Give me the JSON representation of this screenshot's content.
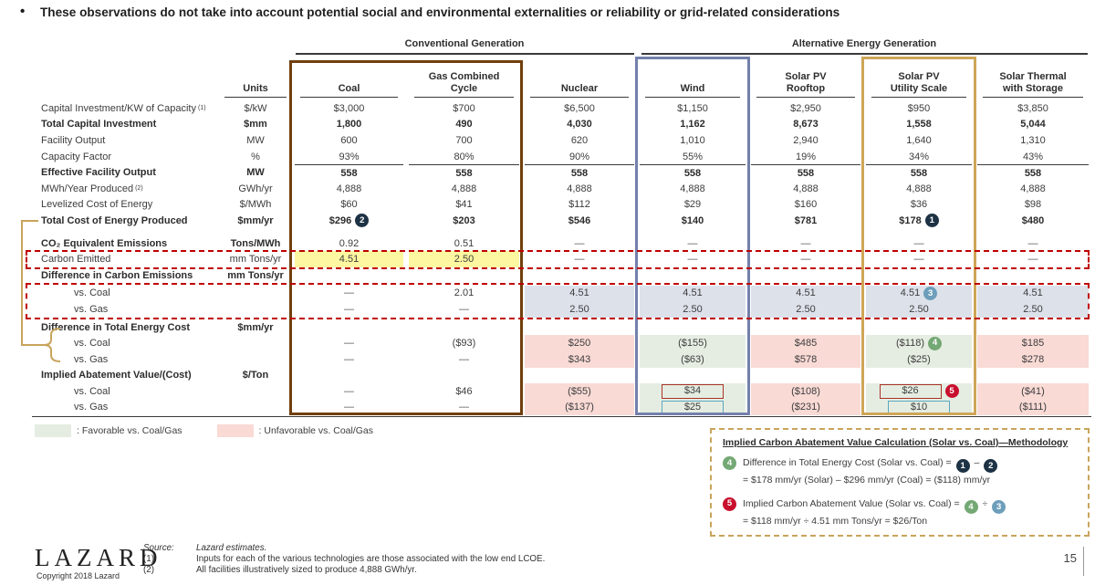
{
  "headline": "These observations do not take into account potential social and environmental externalities or reliability or grid-related considerations",
  "colors": {
    "brown_box": "#713f0d",
    "wind_box": "#7380ac",
    "solar_box": "#cfa557",
    "yellow": "#fcf7a0",
    "blue_cell": "#dce1ea",
    "pink_cell": "#f9dad5",
    "green_cell": "#e5ede2",
    "red_dash": "#c00000",
    "navy_badge": "#1d3244",
    "steel_badge": "#6d9eba",
    "green_badge": "#74a874",
    "red_badge": "#c8102e",
    "tan": "#c8a45c"
  },
  "groups": {
    "conventional": "Conventional Generation",
    "alternative": "Alternative Energy Generation"
  },
  "table": {
    "units_header": "Units",
    "columns": [
      "Coal",
      "Gas Combined\nCycle",
      "Nuclear",
      "Wind",
      "Solar PV\nRooftop",
      "Solar PV\nUtility Scale",
      "Solar Thermal\nwith Storage"
    ],
    "rows": [
      {
        "label": "Capital Investment/KW of Capacity",
        "sup": "(1)",
        "unit": "$/kW",
        "values": [
          "$3,000",
          "$700",
          "$6,500",
          "$1,150",
          "$2,950",
          "$950",
          "$3,850"
        ]
      },
      {
        "label": "Total Capital Investment",
        "bold": true,
        "vbold": true,
        "unit": "$mm",
        "values": [
          "1,800",
          "490",
          "4,030",
          "1,162",
          "8,673",
          "1,558",
          "5,044"
        ]
      },
      {
        "label": "Facility Output",
        "unit": "MW",
        "values": [
          "600",
          "700",
          "620",
          "1,010",
          "2,940",
          "1,640",
          "1,310"
        ]
      },
      {
        "label": "Capacity Factor",
        "unit": "%",
        "values": [
          "93%",
          "80%",
          "90%",
          "55%",
          "19%",
          "34%",
          "43%"
        ]
      },
      {
        "label": "Effective Facility Output",
        "bold": true,
        "vbold": true,
        "topline": true,
        "unit": "MW",
        "values": [
          "558",
          "558",
          "558",
          "558",
          "558",
          "558",
          "558"
        ]
      },
      {
        "label": "MWh/Year Produced",
        "sup": "(2)",
        "unit": "GWh/yr",
        "values": [
          "4,888",
          "4,888",
          "4,888",
          "4,888",
          "4,888",
          "4,888",
          "4,888"
        ]
      },
      {
        "label": "Levelized Cost of Energy",
        "unit": "$/MWh",
        "values": [
          "$60",
          "$41",
          "$112",
          "$29",
          "$160",
          "$36",
          "$98"
        ]
      },
      {
        "label": "Total Cost of Energy Produced",
        "bold": true,
        "vbold": true,
        "unit": "$mm/yr",
        "values": [
          "$296",
          "$203",
          "$546",
          "$140",
          "$781",
          "$178",
          "$480"
        ],
        "badges": [
          {
            "col": 0,
            "num": "2",
            "color": "navy"
          },
          {
            "col": 5,
            "num": "1",
            "color": "navy"
          }
        ]
      },
      {
        "spacer": 7
      },
      {
        "label": "CO₂ Equivalent Emissions",
        "bold": true,
        "unit": "Tons/MWh",
        "values": [
          "0.92",
          "0.51",
          "—",
          "—",
          "—",
          "—",
          "—"
        ]
      },
      {
        "label": "Carbon Emitted",
        "unit": "mm Tons/yr",
        "values": [
          "4.51",
          "2.50",
          "—",
          "—",
          "—",
          "—",
          "—"
        ],
        "bg": [
          "yellow",
          "yellow",
          null,
          null,
          null,
          null,
          null
        ]
      },
      {
        "label": "Difference in Carbon Emissions",
        "bold": true,
        "unit": "mm Tons/yr",
        "values": [
          "",
          "",
          "",
          "",
          "",
          "",
          ""
        ]
      },
      {
        "spacer": 2
      },
      {
        "label": "vs. Coal",
        "indent": true,
        "unit": "",
        "values": [
          "—",
          "2.01",
          "4.51",
          "4.51",
          "4.51",
          "4.51",
          "4.51"
        ],
        "bg": [
          null,
          null,
          "blue",
          "blue",
          "blue",
          "blue",
          "blue"
        ],
        "badges": [
          {
            "col": 5,
            "num": "3",
            "color": "steel"
          }
        ]
      },
      {
        "label": "vs. Gas",
        "indent": true,
        "unit": "",
        "values": [
          "—",
          "—",
          "2.50",
          "2.50",
          "2.50",
          "2.50",
          "2.50"
        ],
        "bg": [
          null,
          null,
          "blue",
          "blue",
          "blue",
          "blue",
          "blue"
        ]
      },
      {
        "spacer": 2
      },
      {
        "label": "Difference in Total Energy Cost",
        "bold": true,
        "unit": "$mm/yr",
        "values": [
          "",
          "",
          "",
          "",
          "",
          "",
          ""
        ]
      },
      {
        "label": "vs. Coal",
        "indent": true,
        "unit": "",
        "values": [
          "—",
          "($93)",
          "$250",
          "($155)",
          "$485",
          "($118)",
          "$185"
        ],
        "bg": [
          null,
          null,
          "pink",
          "green",
          "pink",
          "green",
          "pink"
        ],
        "badges": [
          {
            "col": 5,
            "num": "4",
            "color": "green"
          }
        ]
      },
      {
        "label": "vs. Gas",
        "indent": true,
        "unit": "",
        "values": [
          "—",
          "—",
          "$343",
          "($63)",
          "$578",
          "($25)",
          "$278"
        ],
        "bg": [
          null,
          null,
          "pink",
          "green",
          "pink",
          "green",
          "pink"
        ]
      },
      {
        "label": "Implied Abatement Value/(Cost)",
        "bold": true,
        "unit": "$/Ton",
        "values": [
          "",
          "",
          "",
          "",
          "",
          "",
          ""
        ]
      },
      {
        "label": "vs. Coal",
        "indent": true,
        "unit": "",
        "values": [
          "—",
          "$46",
          "($55)",
          "$34",
          "($108)",
          "$26",
          "($41)"
        ],
        "bg": [
          null,
          null,
          "pink",
          "green",
          "pink",
          "green",
          "pink"
        ],
        "box": [
          null,
          null,
          null,
          "red",
          null,
          "red",
          null
        ],
        "badges": [
          {
            "col": 5,
            "num": "5",
            "color": "red"
          }
        ]
      },
      {
        "label": "vs. Gas",
        "indent": true,
        "unit": "",
        "values": [
          "—",
          "—",
          "($137)",
          "$25",
          "($231)",
          "$10",
          "($111)"
        ],
        "bg": [
          null,
          null,
          "pink",
          "green",
          "pink",
          "green",
          "pink"
        ],
        "box": [
          null,
          null,
          null,
          "blue",
          null,
          "blue",
          null
        ]
      }
    ]
  },
  "legend": {
    "favorable": ": Favorable vs. Coal/Gas",
    "unfavorable": ": Unfavorable vs. Coal/Gas"
  },
  "methodology": {
    "title": "Implied Carbon Abatement Value Calculation (Solar vs. Coal)—Methodology",
    "item1_badge": "4",
    "item1_text": "Difference in Total Energy Cost (Solar vs. Coal) = ",
    "item1_ref1": "1",
    "item1_op": " – ",
    "item1_ref2": "2",
    "item1_line2": "= $178 mm/yr (Solar) – $296 mm/yr (Coal) = ($118) mm/yr",
    "item2_badge": "5",
    "item2_text": "Implied Carbon Abatement Value (Solar vs. Coal) = ",
    "item2_ref1": "4",
    "item2_op": " ÷ ",
    "item2_ref2": "3",
    "item2_line2": "= $118 mm/yr ÷ 4.51 mm Tons/yr = $26/Ton"
  },
  "footer": {
    "logo": "LAZARD",
    "copyright": "Copyright 2018 Lazard",
    "source_label": "Source:",
    "source_text": "Lazard estimates.",
    "note1_num": "(1)",
    "note1_text": "Inputs for each of the various technologies are those associated with the low end LCOE.",
    "note2_num": "(2)",
    "note2_text": "All facilities illustratively sized to produce 4,888 GWh/yr.",
    "page": "15"
  }
}
